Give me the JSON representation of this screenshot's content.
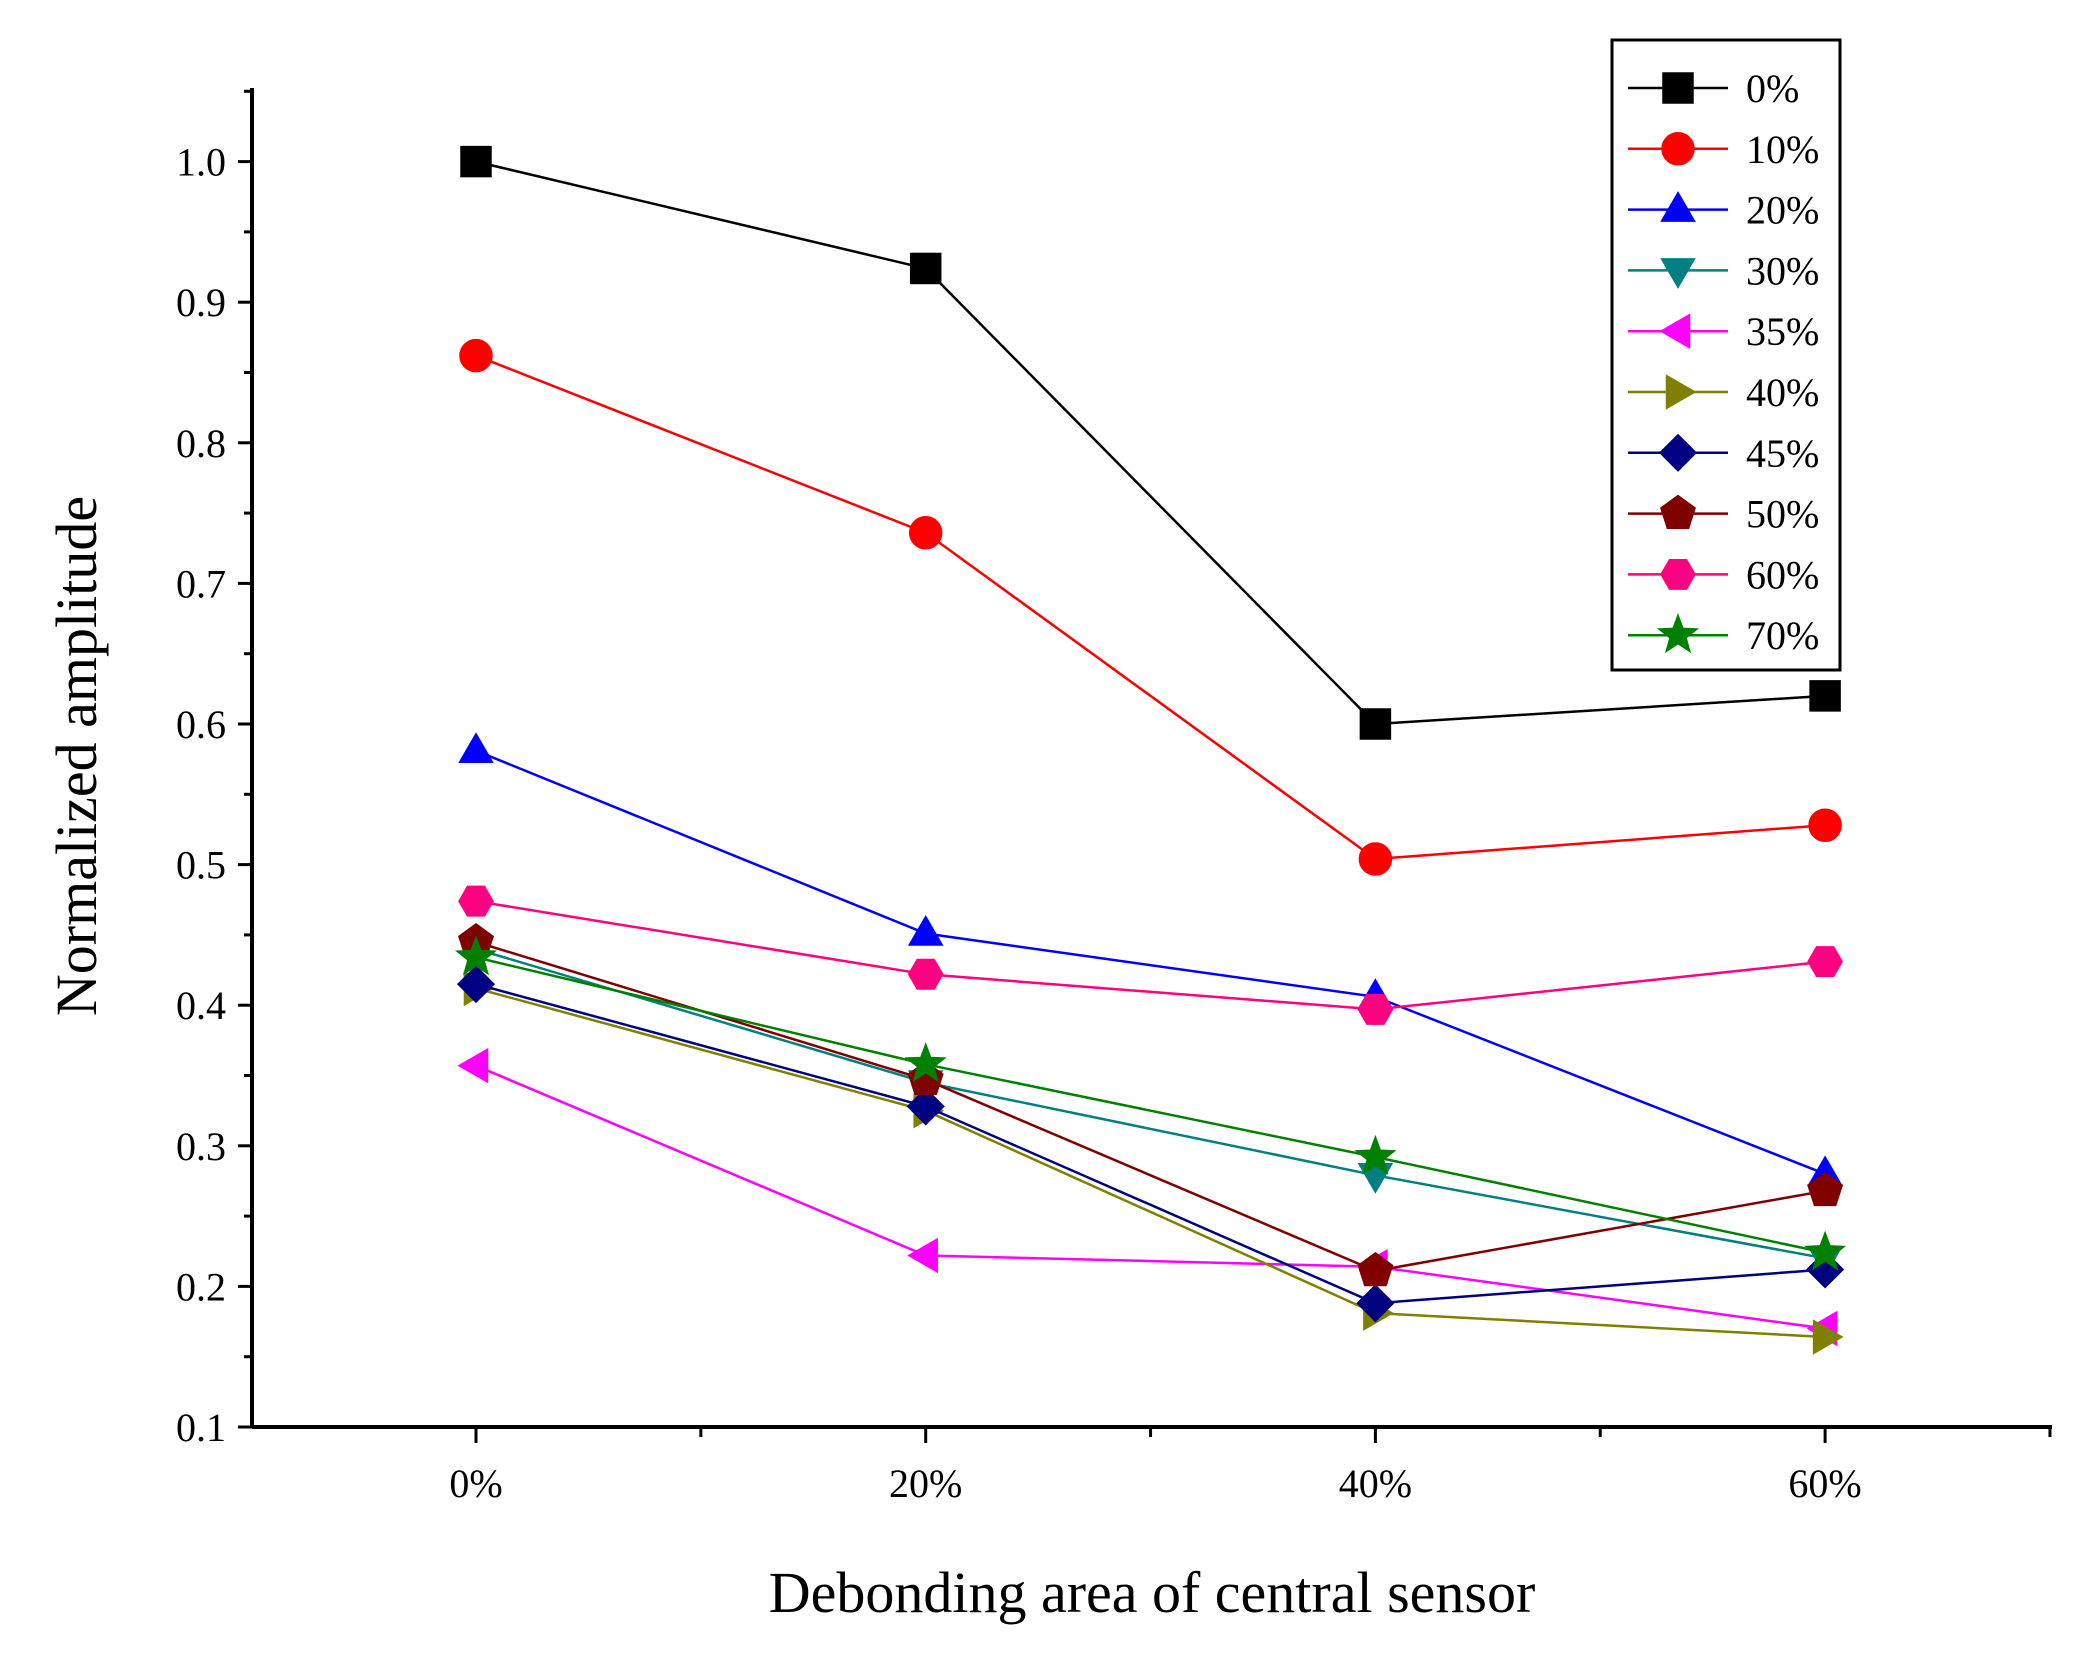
{
  "chart_data": {
    "type": "line",
    "title": "",
    "xlabel": "Debonding area of central sensor",
    "ylabel": "Normalized amplitude",
    "categories": [
      "0%",
      "20%",
      "40%",
      "60%"
    ],
    "ylim": [
      0.1,
      1.05
    ],
    "yticks": [
      "0.1",
      "0.2",
      "0.3",
      "0.4",
      "0.5",
      "0.6",
      "0.7",
      "0.8",
      "0.9",
      "1.0"
    ],
    "legend_position": "top-right",
    "grid": false,
    "series": [
      {
        "name": "0%",
        "color": "#000000",
        "marker": "square",
        "values": [
          1.0,
          0.924,
          0.6,
          0.62
        ]
      },
      {
        "name": "10%",
        "color": "#ff0000",
        "marker": "circle",
        "values": [
          0.862,
          0.736,
          0.504,
          0.528
        ]
      },
      {
        "name": "20%",
        "color": "#0000ff",
        "marker": "triangle-up",
        "values": [
          0.581,
          0.451,
          0.406,
          0.28
        ]
      },
      {
        "name": "30%",
        "color": "#008080",
        "marker": "triangle-down",
        "values": [
          0.44,
          0.345,
          0.279,
          0.22
        ]
      },
      {
        "name": "35%",
        "color": "#ff00ff",
        "marker": "triangle-left",
        "values": [
          0.357,
          0.222,
          0.214,
          0.17
        ]
      },
      {
        "name": "40%",
        "color": "#808000",
        "marker": "triangle-right",
        "values": [
          0.412,
          0.325,
          0.181,
          0.164
        ]
      },
      {
        "name": "45%",
        "color": "#000080",
        "marker": "diamond",
        "values": [
          0.415,
          0.328,
          0.188,
          0.212
        ]
      },
      {
        "name": "50%",
        "color": "#800000",
        "marker": "pentagon",
        "values": [
          0.445,
          0.347,
          0.211,
          0.268
        ]
      },
      {
        "name": "60%",
        "color": "#ff0080",
        "marker": "hexagon",
        "values": [
          0.474,
          0.422,
          0.397,
          0.431
        ]
      },
      {
        "name": "70%",
        "color": "#008000",
        "marker": "star",
        "values": [
          0.434,
          0.358,
          0.292,
          0.224
        ]
      }
    ]
  }
}
